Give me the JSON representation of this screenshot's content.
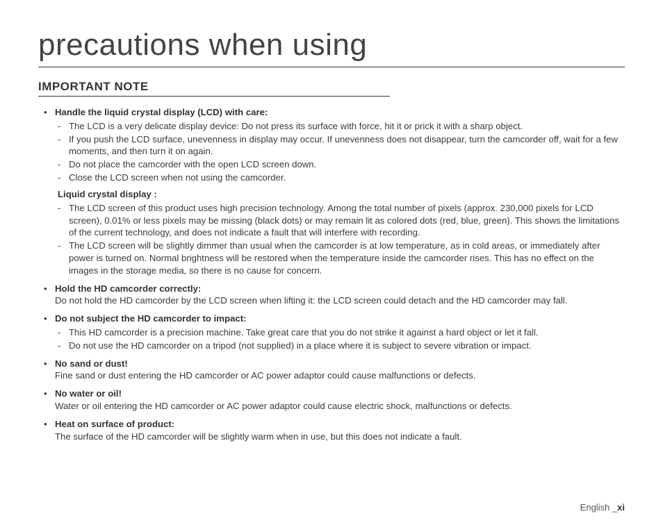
{
  "title": "precautions when using",
  "section_header": "IMPORTANT NOTE",
  "items": [
    {
      "head": "Handle the liquid crystal display (LCD) with care:",
      "sub": [
        "The LCD is a very delicate display device: Do not press its surface with force, hit it or prick it with a sharp object.",
        "If you push the LCD surface, unevenness in display may occur. If unevenness does not disappear, turn the camcorder off, wait for a few moments, and then turn it on again.",
        "Do not place the camcorder with the open LCD screen down.",
        "Close the LCD screen when not using the camcorder."
      ],
      "sub2_head": "Liquid crystal display :",
      "sub2": [
        "The LCD screen of this product uses high precision technology. Among the total number of pixels (approx. 230,000 pixels for LCD screen), 0.01% or less pixels may be missing (black dots) or may remain lit as colored dots (red, blue, green). This shows the limitations of the current technology, and does not indicate a fault that will interfere with recording.",
        "The LCD screen will be slightly dimmer than usual when the camcorder is at low temperature, as in cold areas, or immediately after power is turned on. Normal brightness will be restored when the temperature inside the camcorder rises. This has no effect on the images in the storage media, so there is no cause for concern."
      ]
    },
    {
      "head": "Hold the HD camcorder correctly:",
      "body": "Do not hold the HD camcorder by the LCD screen when lifting it: the LCD screen could detach and the HD camcorder may fall."
    },
    {
      "head": "Do not subject the HD camcorder to impact:",
      "sub": [
        "This HD camcorder is a precision machine. Take great care that you do not strike it against a hard object or let it fall.",
        "Do not use the HD camcorder on a tripod (not supplied) in a place where it is subject to severe vibration or impact."
      ]
    },
    {
      "head": "No sand or dust!",
      "body": "Fine sand or dust entering the HD camcorder or AC power adaptor could cause malfunctions or defects."
    },
    {
      "head": "No water or oil!",
      "body": "Water or oil entering the HD camcorder or AC power adaptor could cause electric shock, malfunctions or defects."
    },
    {
      "head": "Heat on surface of product:",
      "body": "The surface of the HD camcorder will be slightly warm when in use, but this does not indicate a fault."
    }
  ],
  "footer_lang": "English ",
  "footer_sep": "_",
  "footer_page": "xi",
  "colors": {
    "background": "#ffffff",
    "text": "#3a3a3a",
    "heading": "#333333",
    "rule": "#333333"
  },
  "typography": {
    "title_fontsize": 44,
    "title_weight": 300,
    "section_header_fontsize": 17,
    "body_fontsize": 13.2,
    "line_height": 1.35
  }
}
